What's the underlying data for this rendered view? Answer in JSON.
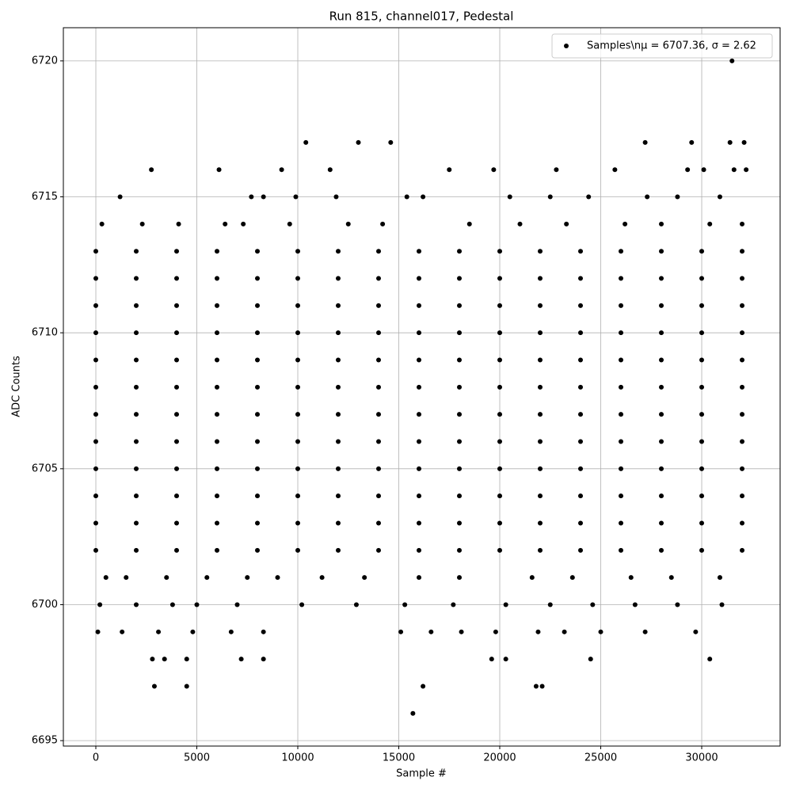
{
  "chart_data": {
    "type": "scatter",
    "title": "Run 815, channel017, Pedestal",
    "xlabel": "Sample #",
    "ylabel": "ADC Counts",
    "xlim": [
      -1608,
      33882
    ],
    "ylim": [
      6694.8,
      6721.22
    ],
    "xticks": [
      0,
      5000,
      10000,
      15000,
      20000,
      25000,
      30000
    ],
    "yticks": [
      6695,
      6700,
      6705,
      6710,
      6715,
      6720
    ],
    "grid": true,
    "legend": "upper right",
    "series": [
      {
        "name": "Samples\\nμ = 6707.36, σ = 2.62",
        "color": "#000000",
        "x": [
          0,
          2000,
          4000,
          6000,
          8000,
          10000,
          12000,
          14000,
          16000,
          18000,
          20000,
          22000,
          24000,
          26000,
          28000,
          30000,
          32000,
          0,
          2000,
          4000,
          6000,
          8000,
          10000,
          12000,
          14000,
          16000,
          18000,
          20000,
          22000,
          24000,
          26000,
          28000,
          30000,
          32000,
          0,
          2000,
          4000,
          6000,
          8000,
          10000,
          12000,
          14000,
          16000,
          18000,
          20000,
          22000,
          24000,
          26000,
          28000,
          30000,
          32000,
          0,
          2000,
          4000,
          6000,
          8000,
          10000,
          12000,
          14000,
          16000,
          18000,
          20000,
          22000,
          24000,
          26000,
          28000,
          30000,
          32000,
          0,
          2000,
          4000,
          6000,
          8000,
          10000,
          12000,
          14000,
          16000,
          18000,
          20000,
          22000,
          24000,
          26000,
          28000,
          30000,
          32000,
          0,
          2000,
          4000,
          6000,
          8000,
          10000,
          12000,
          14000,
          16000,
          18000,
          20000,
          22000,
          24000,
          26000,
          28000,
          30000,
          32000,
          0,
          2000,
          4000,
          6000,
          8000,
          10000,
          12000,
          14000,
          16000,
          18000,
          20000,
          22000,
          24000,
          26000,
          28000,
          30000,
          32000,
          0,
          2000,
          4000,
          6000,
          8000,
          10000,
          12000,
          14000,
          16000,
          18000,
          20000,
          22000,
          24000,
          26000,
          28000,
          30000,
          32000,
          0,
          2000,
          4000,
          6000,
          8000,
          10000,
          12000,
          14000,
          16000,
          18000,
          20000,
          22000,
          24000,
          26000,
          28000,
          30000,
          32000,
          0,
          2000,
          4000,
          6000,
          8000,
          10000,
          12000,
          14000,
          16000,
          18000,
          20000,
          22000,
          24000,
          26000,
          28000,
          30000,
          32000,
          0,
          2000,
          4000,
          6000,
          8000,
          10000,
          12000,
          14000,
          16000,
          18000,
          20000,
          22000,
          24000,
          26000,
          28000,
          30000,
          32000,
          0,
          2000,
          4000,
          6000,
          8000,
          10000,
          12000,
          14000,
          16000,
          18000,
          20000,
          22000,
          24000,
          26000,
          28000,
          30000,
          32000,
          31500,
          10400,
          13000,
          14600,
          27200,
          29500,
          31400,
          32100,
          2750,
          6100,
          9200,
          11600,
          17500,
          19700,
          22800,
          25700,
          29300,
          30100,
          31600,
          32200,
          1200,
          7700,
          8300,
          9900,
          11900,
          15400,
          16200,
          20500,
          22500,
          24400,
          27300,
          28800,
          30900,
          300,
          2300,
          4100,
          6400,
          7300,
          9600,
          12500,
          14200,
          18500,
          21000,
          23300,
          26200,
          28000,
          30400,
          32000,
          500,
          1500,
          3500,
          5500,
          7500,
          9000,
          11200,
          13300,
          16000,
          18000,
          21600,
          23600,
          26500,
          28500,
          30900,
          200,
          2000,
          3800,
          5000,
          7000,
          10200,
          12900,
          15300,
          17700,
          20300,
          22500,
          24600,
          26700,
          28800,
          31000,
          100,
          1300,
          3100,
          4800,
          6700,
          8300,
          15100,
          16600,
          18100,
          19800,
          21900,
          23200,
          25000,
          27200,
          29700,
          2800,
          3400,
          4500,
          7200,
          8300,
          19600,
          20300,
          24500,
          30400,
          2900,
          4500,
          16200,
          21800,
          22100,
          15700
        ],
        "values": [
          6702,
          6702,
          6702,
          6702,
          6702,
          6702,
          6702,
          6702,
          6702,
          6702,
          6702,
          6702,
          6702,
          6702,
          6702,
          6702,
          6702,
          6703,
          6703,
          6703,
          6703,
          6703,
          6703,
          6703,
          6703,
          6703,
          6703,
          6703,
          6703,
          6703,
          6703,
          6703,
          6703,
          6703,
          6704,
          6704,
          6704,
          6704,
          6704,
          6704,
          6704,
          6704,
          6704,
          6704,
          6704,
          6704,
          6704,
          6704,
          6704,
          6704,
          6704,
          6705,
          6705,
          6705,
          6705,
          6705,
          6705,
          6705,
          6705,
          6705,
          6705,
          6705,
          6705,
          6705,
          6705,
          6705,
          6705,
          6705,
          6706,
          6706,
          6706,
          6706,
          6706,
          6706,
          6706,
          6706,
          6706,
          6706,
          6706,
          6706,
          6706,
          6706,
          6706,
          6706,
          6706,
          6707,
          6707,
          6707,
          6707,
          6707,
          6707,
          6707,
          6707,
          6707,
          6707,
          6707,
          6707,
          6707,
          6707,
          6707,
          6707,
          6707,
          6708,
          6708,
          6708,
          6708,
          6708,
          6708,
          6708,
          6708,
          6708,
          6708,
          6708,
          6708,
          6708,
          6708,
          6708,
          6708,
          6708,
          6709,
          6709,
          6709,
          6709,
          6709,
          6709,
          6709,
          6709,
          6709,
          6709,
          6709,
          6709,
          6709,
          6709,
          6709,
          6709,
          6709,
          6710,
          6710,
          6710,
          6710,
          6710,
          6710,
          6710,
          6710,
          6710,
          6710,
          6710,
          6710,
          6710,
          6710,
          6710,
          6710,
          6710,
          6711,
          6711,
          6711,
          6711,
          6711,
          6711,
          6711,
          6711,
          6711,
          6711,
          6711,
          6711,
          6711,
          6711,
          6711,
          6711,
          6711,
          6712,
          6712,
          6712,
          6712,
          6712,
          6712,
          6712,
          6712,
          6712,
          6712,
          6712,
          6712,
          6712,
          6712,
          6712,
          6712,
          6712,
          6713,
          6713,
          6713,
          6713,
          6713,
          6713,
          6713,
          6713,
          6713,
          6713,
          6713,
          6713,
          6713,
          6713,
          6713,
          6713,
          6713,
          6720,
          6717,
          6717,
          6717,
          6717,
          6717,
          6717,
          6717,
          6716,
          6716,
          6716,
          6716,
          6716,
          6716,
          6716,
          6716,
          6716,
          6716,
          6716,
          6716,
          6715,
          6715,
          6715,
          6715,
          6715,
          6715,
          6715,
          6715,
          6715,
          6715,
          6715,
          6715,
          6715,
          6714,
          6714,
          6714,
          6714,
          6714,
          6714,
          6714,
          6714,
          6714,
          6714,
          6714,
          6714,
          6714,
          6714,
          6714,
          6701,
          6701,
          6701,
          6701,
          6701,
          6701,
          6701,
          6701,
          6701,
          6701,
          6701,
          6701,
          6701,
          6701,
          6701,
          6700,
          6700,
          6700,
          6700,
          6700,
          6700,
          6700,
          6700,
          6700,
          6700,
          6700,
          6700,
          6700,
          6700,
          6700,
          6699,
          6699,
          6699,
          6699,
          6699,
          6699,
          6699,
          6699,
          6699,
          6699,
          6699,
          6699,
          6699,
          6699,
          6699,
          6698,
          6698,
          6698,
          6698,
          6698,
          6698,
          6698,
          6698,
          6698,
          6697,
          6697,
          6697,
          6697,
          6697,
          6696
        ]
      }
    ]
  }
}
